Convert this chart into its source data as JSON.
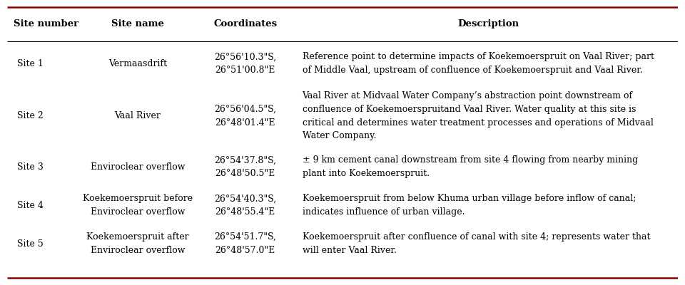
{
  "headers": [
    "Site number",
    "Site name",
    "Coordinates",
    "Description"
  ],
  "rows": [
    {
      "site_number": "Site 1",
      "site_name": "Vermaasdrift",
      "coordinates": "26°56'10.3\"S,\n26°51'00.8\"E",
      "description": "Reference point to determine impacts of Koekemoerspruit on Vaal River; part\nof Middle Vaal, upstream of confluence of Koekemoerspruit and Vaal River."
    },
    {
      "site_number": "Site 2",
      "site_name": "Vaal River",
      "coordinates": "26°56'04.5\"S,\n26°48'01.4\"E",
      "description": "Vaal River at Midvaal Water Company’s abstraction point downstream of\nconfluence of Koekemoerspruitand Vaal River. Water quality at this site is\ncritical and determines water treatment processes and operations of Midvaal\nWater Company."
    },
    {
      "site_number": "Site 3",
      "site_name": "Enviroclear overflow",
      "coordinates": "26°54'37.8\"S,\n26°48'50.5\"E",
      "description": "± 9 km cement canal downstream from site 4 flowing from nearby mining\nplant into Koekemoerspruit."
    },
    {
      "site_number": "Site 4",
      "site_name": "Koekemoerspruit before\nEnviroclear overflow",
      "coordinates": "26°54'40.3\"S,\n26°48'55.4\"E",
      "description": "Koekemoerspruit from below Khuma urban village before inflow of canal;\nindicates influence of urban village."
    },
    {
      "site_number": "Site 5",
      "site_name": "Koekemoerspruit after\nEnviroclear overflow",
      "coordinates": "26°54'51.7\"S,\n26°48'57.0\"E",
      "description": "Koekemoerspruit after confluence of canal with site 4; represents water that\nwill enter Vaal River."
    }
  ],
  "top_line_color": "#8B0000",
  "bottom_line_color": "#8B0000",
  "header_line_color": "#000000",
  "bg_color": "#ffffff",
  "text_color": "#000000",
  "header_fontsize": 9.5,
  "cell_fontsize": 9.0,
  "fig_width": 9.6,
  "fig_height": 4.0
}
